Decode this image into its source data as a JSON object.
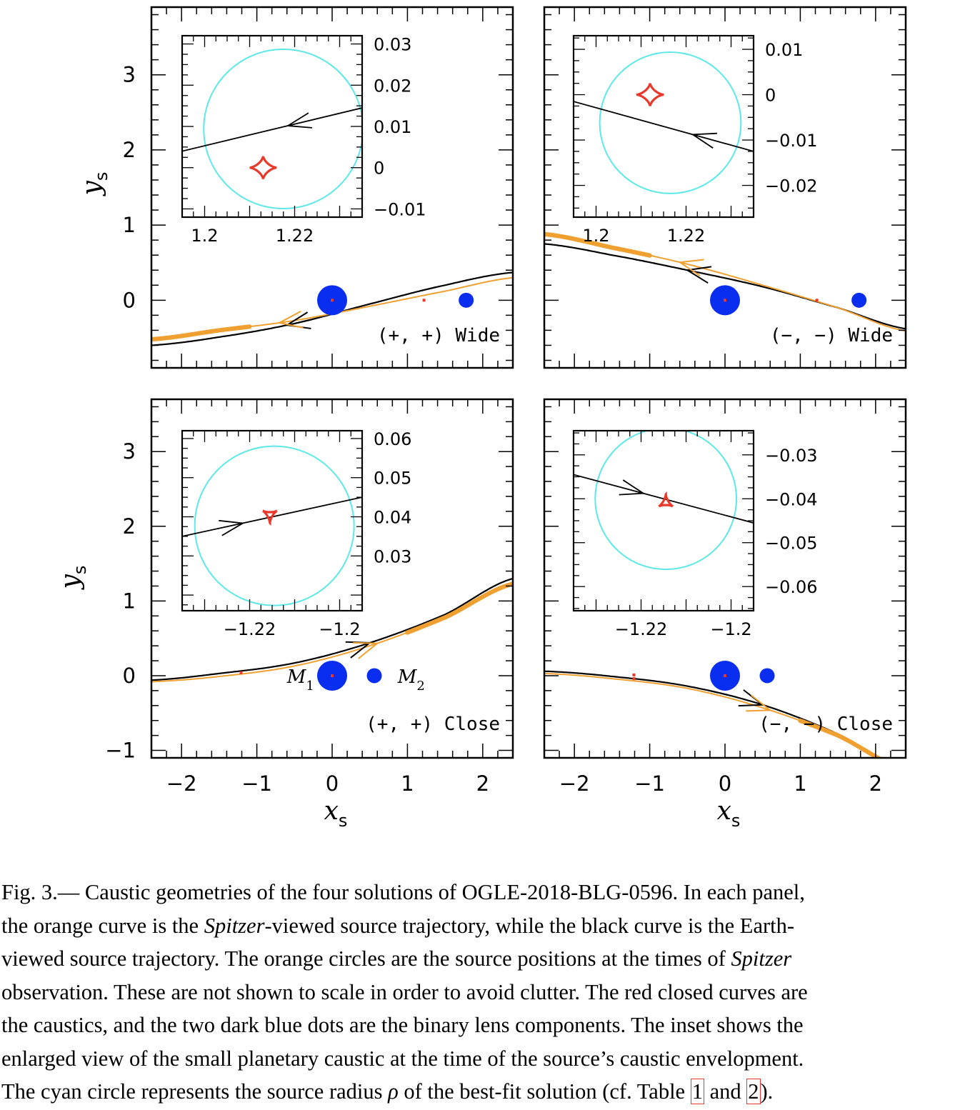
{
  "figure": {
    "colors": {
      "earth_trajectory": "#000000",
      "spitzer_trajectory": "#f0a030",
      "caustic": "#e8392a",
      "source": "#5ee8e8",
      "lens": "#0a2ef0",
      "frame": "#000000"
    },
    "x_title": "x",
    "x_sub": "s",
    "y_title": "y",
    "y_sub": "s",
    "mass_labels": {
      "m1": "M",
      "m1_sub": "1",
      "m2": "M",
      "m2_sub": "2"
    }
  },
  "chart_data": [
    {
      "type": "line",
      "title": "(+, +) Wide",
      "xlabel": "x_s",
      "ylabel": "y_s",
      "xlim": [
        -2.4,
        2.4
      ],
      "ylim": [
        -0.9,
        3.9
      ],
      "xticks": [
        -2,
        -1,
        0,
        1,
        2
      ],
      "yticks": [
        0,
        1,
        2,
        3
      ],
      "xtick_labels": [
        "−2",
        "−1",
        "0",
        "1",
        "2"
      ],
      "ytick_labels": [
        "0",
        "1",
        "2",
        "3"
      ],
      "lenses": [
        {
          "x": 0,
          "y": 0,
          "size": "large"
        },
        {
          "x": 1.78,
          "y": 0,
          "size": "small"
        }
      ],
      "caustics": [
        {
          "x": 0,
          "y": 0
        },
        {
          "x": 1.22,
          "y": 0
        }
      ],
      "earth": {
        "x": [
          -2.4,
          -1.5,
          -0.5,
          0.5,
          1.5,
          2.4
        ],
        "y": [
          -0.6,
          -0.49,
          -0.31,
          -0.05,
          0.2,
          0.37
        ]
      },
      "spitzer": {
        "x": [
          -2.4,
          -1.5,
          -0.5,
          0.5,
          1.5,
          2.4
        ],
        "y": [
          -0.52,
          -0.4,
          -0.27,
          -0.08,
          0.12,
          0.3
        ]
      },
      "spitzer_obs": {
        "from": -2.4,
        "to": -1.1
      },
      "inset": {
        "xlim": [
          1.195,
          1.235
        ],
        "ylim": [
          -0.012,
          0.032
        ],
        "xticks": [
          1.2,
          1.22
        ],
        "xtick_labels": [
          "1.2",
          "1.22"
        ],
        "yticks": [
          -0.01,
          0,
          0.01,
          0.02,
          0.03
        ],
        "ytick_labels": [
          "−0.01",
          "0",
          "0.01",
          "0.02",
          "0.03"
        ],
        "caustic": {
          "x": 1.213,
          "y": 0.0,
          "r": 0.003,
          "shape": "astroid"
        },
        "source": {
          "x": 1.2175,
          "y": 0.0094,
          "r": 0.0177
        },
        "traj": {
          "x": [
            1.195,
            1.235
          ],
          "y": [
            0.004,
            0.0145
          ]
        },
        "arrow_x": 1.2185
      }
    },
    {
      "type": "line",
      "title": "(−, −) Wide",
      "xlabel": "x_s",
      "ylabel": "y_s",
      "xlim": [
        -2.4,
        2.4
      ],
      "ylim": [
        -0.9,
        3.9
      ],
      "xticks": [
        -2,
        -1,
        0,
        1,
        2
      ],
      "yticks": [
        0,
        1,
        2,
        3
      ],
      "xtick_labels": [
        "−2",
        "−1",
        "0",
        "1",
        "2"
      ],
      "ytick_labels": [
        "0",
        "1",
        "2",
        "3"
      ],
      "lenses": [
        {
          "x": 0,
          "y": 0,
          "size": "large"
        },
        {
          "x": 1.78,
          "y": 0,
          "size": "small"
        }
      ],
      "caustics": [
        {
          "x": 0,
          "y": 0
        },
        {
          "x": 1.22,
          "y": 0
        }
      ],
      "earth": {
        "x": [
          -2.4,
          -1.5,
          -0.5,
          0.5,
          1.5,
          2.4
        ],
        "y": [
          0.75,
          0.6,
          0.4,
          0.18,
          -0.1,
          -0.38
        ]
      },
      "spitzer": {
        "x": [
          -2.4,
          -1.5,
          -0.5,
          0.5,
          1.5,
          2.4
        ],
        "y": [
          0.88,
          0.7,
          0.48,
          0.2,
          -0.1,
          -0.41
        ]
      },
      "spitzer_obs": {
        "from": -2.4,
        "to": -1.0
      },
      "inset": {
        "xlim": [
          1.195,
          1.235
        ],
        "ylim": [
          -0.027,
          0.013
        ],
        "xticks": [
          1.2,
          1.22
        ],
        "xtick_labels": [
          "1.2",
          "1.22"
        ],
        "yticks": [
          -0.02,
          -0.01,
          0,
          0.01
        ],
        "ytick_labels": [
          "−0.02",
          "−0.01",
          "0",
          "0.01"
        ],
        "caustic": {
          "x": 1.212,
          "y": 0.0,
          "r": 0.003,
          "shape": "astroid"
        },
        "source": {
          "x": 1.2165,
          "y": -0.0062,
          "r": 0.0157
        },
        "traj": {
          "x": [
            1.195,
            1.235
          ],
          "y": [
            -0.0015,
            -0.0125
          ]
        },
        "arrow_x": 1.2215
      }
    },
    {
      "type": "line",
      "title": "(+, +) Close",
      "xlabel": "x_s",
      "ylabel": "y_s",
      "xlim": [
        -2.4,
        2.4
      ],
      "ylim": [
        -1.1,
        3.7
      ],
      "xticks": [
        -2,
        -1,
        0,
        1,
        2
      ],
      "yticks": [
        -1,
        0,
        1,
        2,
        3
      ],
      "xtick_labels": [
        "−2",
        "−1",
        "0",
        "1",
        "2"
      ],
      "ytick_labels": [
        "−1",
        "0",
        "1",
        "2",
        "3"
      ],
      "lenses": [
        {
          "x": 0,
          "y": 0,
          "size": "large"
        },
        {
          "x": 0.56,
          "y": 0,
          "size": "small"
        }
      ],
      "caustics": [
        {
          "x": 0,
          "y": 0
        },
        {
          "x": -1.21,
          "y": 0.04
        }
      ],
      "earth": {
        "x": [
          -2.4,
          -1.5,
          -0.5,
          0.5,
          1.5,
          2.4
        ],
        "y": [
          -0.06,
          0.03,
          0.17,
          0.44,
          0.82,
          1.3
        ]
      },
      "spitzer": {
        "x": [
          -2.4,
          -1.5,
          -0.5,
          0.5,
          1.5,
          2.4
        ],
        "y": [
          -0.08,
          -0.01,
          0.13,
          0.4,
          0.78,
          1.23
        ]
      },
      "spitzer_obs": {
        "from": 1.0,
        "to": 2.4
      },
      "inset": {
        "xlim": [
          -1.235,
          -1.195
        ],
        "ylim": [
          0.016,
          0.062
        ],
        "xticks": [
          -1.22,
          -1.2
        ],
        "xtick_labels": [
          "−1.22",
          "−1.2"
        ],
        "yticks": [
          0.03,
          0.04,
          0.05,
          0.06
        ],
        "ytick_labels": [
          "0.03",
          "0.04",
          "0.05",
          "0.06"
        ],
        "caustic": {
          "x": -1.2155,
          "y": 0.0407,
          "r": 0.0018,
          "shape": "triangle-up"
        },
        "source": {
          "x": -1.2145,
          "y": 0.0377,
          "r": 0.0177
        },
        "traj": {
          "x": [
            -1.235,
            -1.195
          ],
          "y": [
            0.035,
            0.045
          ]
        },
        "arrow_x": -1.2215
      }
    },
    {
      "type": "line",
      "title": "(−, −) Close",
      "xlabel": "x_s",
      "ylabel": "y_s",
      "xlim": [
        -2.4,
        2.4
      ],
      "ylim": [
        -1.1,
        3.7
      ],
      "xticks": [
        -2,
        -1,
        0,
        1,
        2
      ],
      "yticks": [
        -1,
        0,
        1,
        2,
        3
      ],
      "xtick_labels": [
        "−2",
        "−1",
        "0",
        "1",
        "2"
      ],
      "ytick_labels": [
        "−1",
        "0",
        "1",
        "2",
        "3"
      ],
      "lenses": [
        {
          "x": 0,
          "y": 0,
          "size": "large"
        },
        {
          "x": 0.56,
          "y": 0,
          "size": "small"
        }
      ],
      "caustics": [
        {
          "x": 0,
          "y": 0
        },
        {
          "x": -1.21,
          "y": 0.01
        },
        {
          "x": -1.21,
          "y": -0.04
        }
      ],
      "earth": {
        "x": [
          -2.4,
          -1.5,
          -0.5,
          0.5,
          1.5,
          2.4
        ],
        "y": [
          0.06,
          -0.01,
          -0.14,
          -0.39,
          -0.78,
          -1.28
        ]
      },
      "spitzer": {
        "x": [
          -2.4,
          -1.5,
          -0.5,
          0.5,
          1.5,
          2.4
        ],
        "y": [
          0.03,
          -0.04,
          -0.17,
          -0.43,
          -0.8,
          -1.26
        ]
      },
      "spitzer_obs": {
        "from": 1.0,
        "to": 2.4
      },
      "inset": {
        "xlim": [
          -1.235,
          -1.195
        ],
        "ylim": [
          -0.0655,
          -0.0245
        ],
        "xticks": [
          -1.22,
          -1.2
        ],
        "xtick_labels": [
          "−1.22",
          "−1.2"
        ],
        "yticks": [
          -0.06,
          -0.05,
          -0.04,
          -0.03
        ],
        "ytick_labels": [
          "−0.06",
          "−0.05",
          "−0.04",
          "−0.03"
        ],
        "caustic": {
          "x": -1.2145,
          "y": -0.041,
          "r": 0.0018,
          "shape": "triangle-down"
        },
        "source": {
          "x": -1.2145,
          "y": -0.04,
          "r": 0.0157
        },
        "traj": {
          "x": [
            -1.235,
            -1.195
          ],
          "y": [
            -0.0345,
            -0.0455
          ]
        },
        "arrow_x": -1.2195
      }
    }
  ],
  "caption": {
    "lines": [
      [
        "Fig. 3.— Caustic geometries of the four solutions of OGLE-2018-BLG-0596. In each panel,"
      ],
      [
        "the orange curve is the ",
        {
          "i": "Spitzer"
        },
        "-viewed source trajectory, while the black curve is the Earth-"
      ],
      [
        "viewed source trajectory. The orange circles are the source positions at the times of ",
        {
          "i": "Spitzer"
        }
      ],
      [
        "observation. These are not shown to scale in order to avoid clutter. The red closed curves are"
      ],
      [
        "the caustics, and the two dark blue dots are the binary lens components. The inset shows the"
      ],
      [
        "enlarged view of the small planetary caustic at the time of the source’s caustic envelopment."
      ],
      [
        "The cyan circle represents the source radius ",
        {
          "i": "ρ"
        },
        " of the best-fit solution (cf. Table ",
        {
          "r": "1"
        },
        " and ",
        {
          "r": "2"
        },
        ")."
      ]
    ]
  }
}
